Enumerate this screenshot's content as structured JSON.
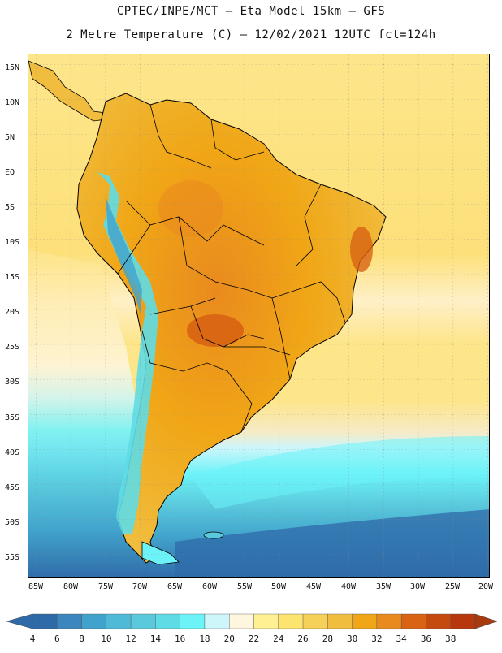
{
  "header": {
    "line1": "CPTEC/INPE/MCT –  Eta Model 15km – GFS",
    "line2": "2 Metre Temperature (C) – 12/02/2021 12UTC fct=124h"
  },
  "axes": {
    "lat_labels": [
      "15N",
      "10N",
      "5N",
      "EQ",
      "5S",
      "10S",
      "15S",
      "20S",
      "25S",
      "30S",
      "35S",
      "40S",
      "45S",
      "50S",
      "55S"
    ],
    "lon_labels": [
      "85W",
      "80W",
      "75W",
      "70W",
      "65W",
      "60W",
      "55W",
      "50W",
      "45W",
      "40W",
      "35W",
      "30W",
      "25W",
      "20W"
    ]
  },
  "colorbar": {
    "ticks": [
      "4",
      "6",
      "8",
      "10",
      "12",
      "14",
      "16",
      "18",
      "20",
      "22",
      "24",
      "26",
      "28",
      "30",
      "32",
      "34",
      "36",
      "38"
    ],
    "colors": [
      "#2f6aa8",
      "#3a86bd",
      "#41a3cc",
      "#4fbad8",
      "#5ac9dc",
      "#5fdbe6",
      "#6cf3f8",
      "#cdf6fb",
      "#fff6df",
      "#fff094",
      "#fde46e",
      "#f6d15a",
      "#f1bd3e",
      "#f0a616",
      "#e98a1e",
      "#d86313",
      "#c44a0d",
      "#b6380c"
    ]
  },
  "map": {
    "ocean_colors": {
      "warm_north": "#fde58a",
      "mid": "#cdf6fb",
      "cool": "#5ac9dc",
      "cold": "#2f6aa8"
    },
    "land_colors": {
      "hot": "#e98a1e",
      "warm": "#f0a616",
      "mild": "#f1bd3e",
      "andes_cold": "#5fdbe6"
    }
  }
}
